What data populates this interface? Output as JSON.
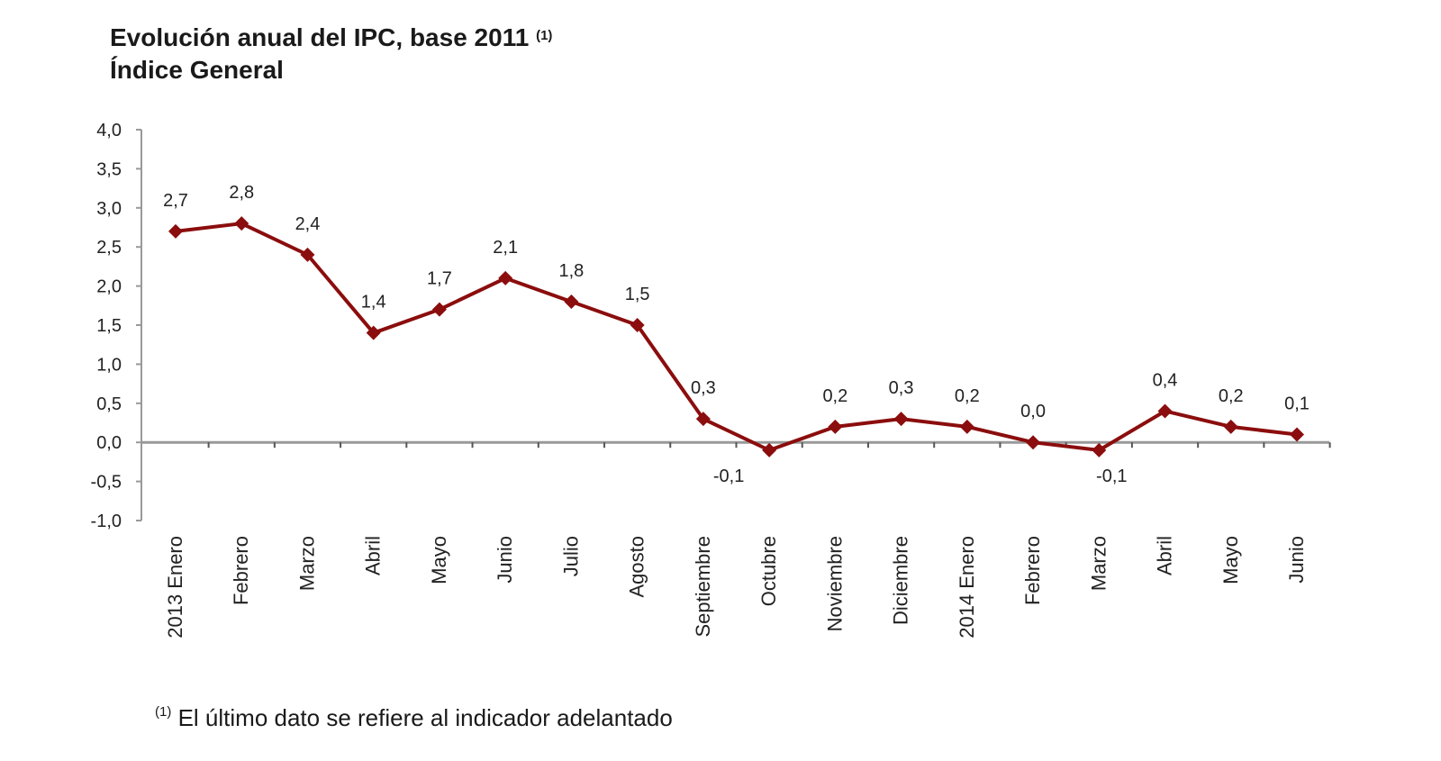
{
  "chart_data": {
    "type": "line",
    "title": "Evolución anual del IPC, base 2011",
    "title_footnote_mark": "(1)",
    "subtitle": "Índice General",
    "categories": [
      "2013 Enero",
      "Febrero",
      "Marzo",
      "Abril",
      "Mayo",
      "Junio",
      "Julio",
      "Agosto",
      "Septiembre",
      "Octubre",
      "Noviembre",
      "Diciembre",
      "2014 Enero",
      "Febrero",
      "Marzo",
      "Abril",
      "Mayo",
      "Junio"
    ],
    "values": [
      2.7,
      2.8,
      2.4,
      1.4,
      1.7,
      2.1,
      1.8,
      1.5,
      0.3,
      -0.1,
      0.2,
      0.3,
      0.2,
      0.0,
      -0.1,
      0.4,
      0.2,
      0.1
    ],
    "data_labels": [
      "2,7",
      "2,8",
      "2,4",
      "1,4",
      "1,7",
      "2,1",
      "1,8",
      "1,5",
      "0,3",
      "-0,1",
      "0,2",
      "0,3",
      "0,2",
      "0,0",
      "-0,1",
      "0,4",
      "0,2",
      "0,1"
    ],
    "ylim": [
      -1.0,
      4.0
    ],
    "yticks": [
      "4,0",
      "3,5",
      "3,0",
      "2,5",
      "2,0",
      "1,5",
      "1,0",
      "0,5",
      "0,0",
      "-0,5",
      "-1,0"
    ],
    "xlabel": "",
    "ylabel": "",
    "grid": false,
    "legend": "none",
    "series_color": "#8b0d0d",
    "marker": "diamond",
    "footnote_mark": "(1)",
    "footnote": "El último dato se refiere al indicador adelantado"
  }
}
